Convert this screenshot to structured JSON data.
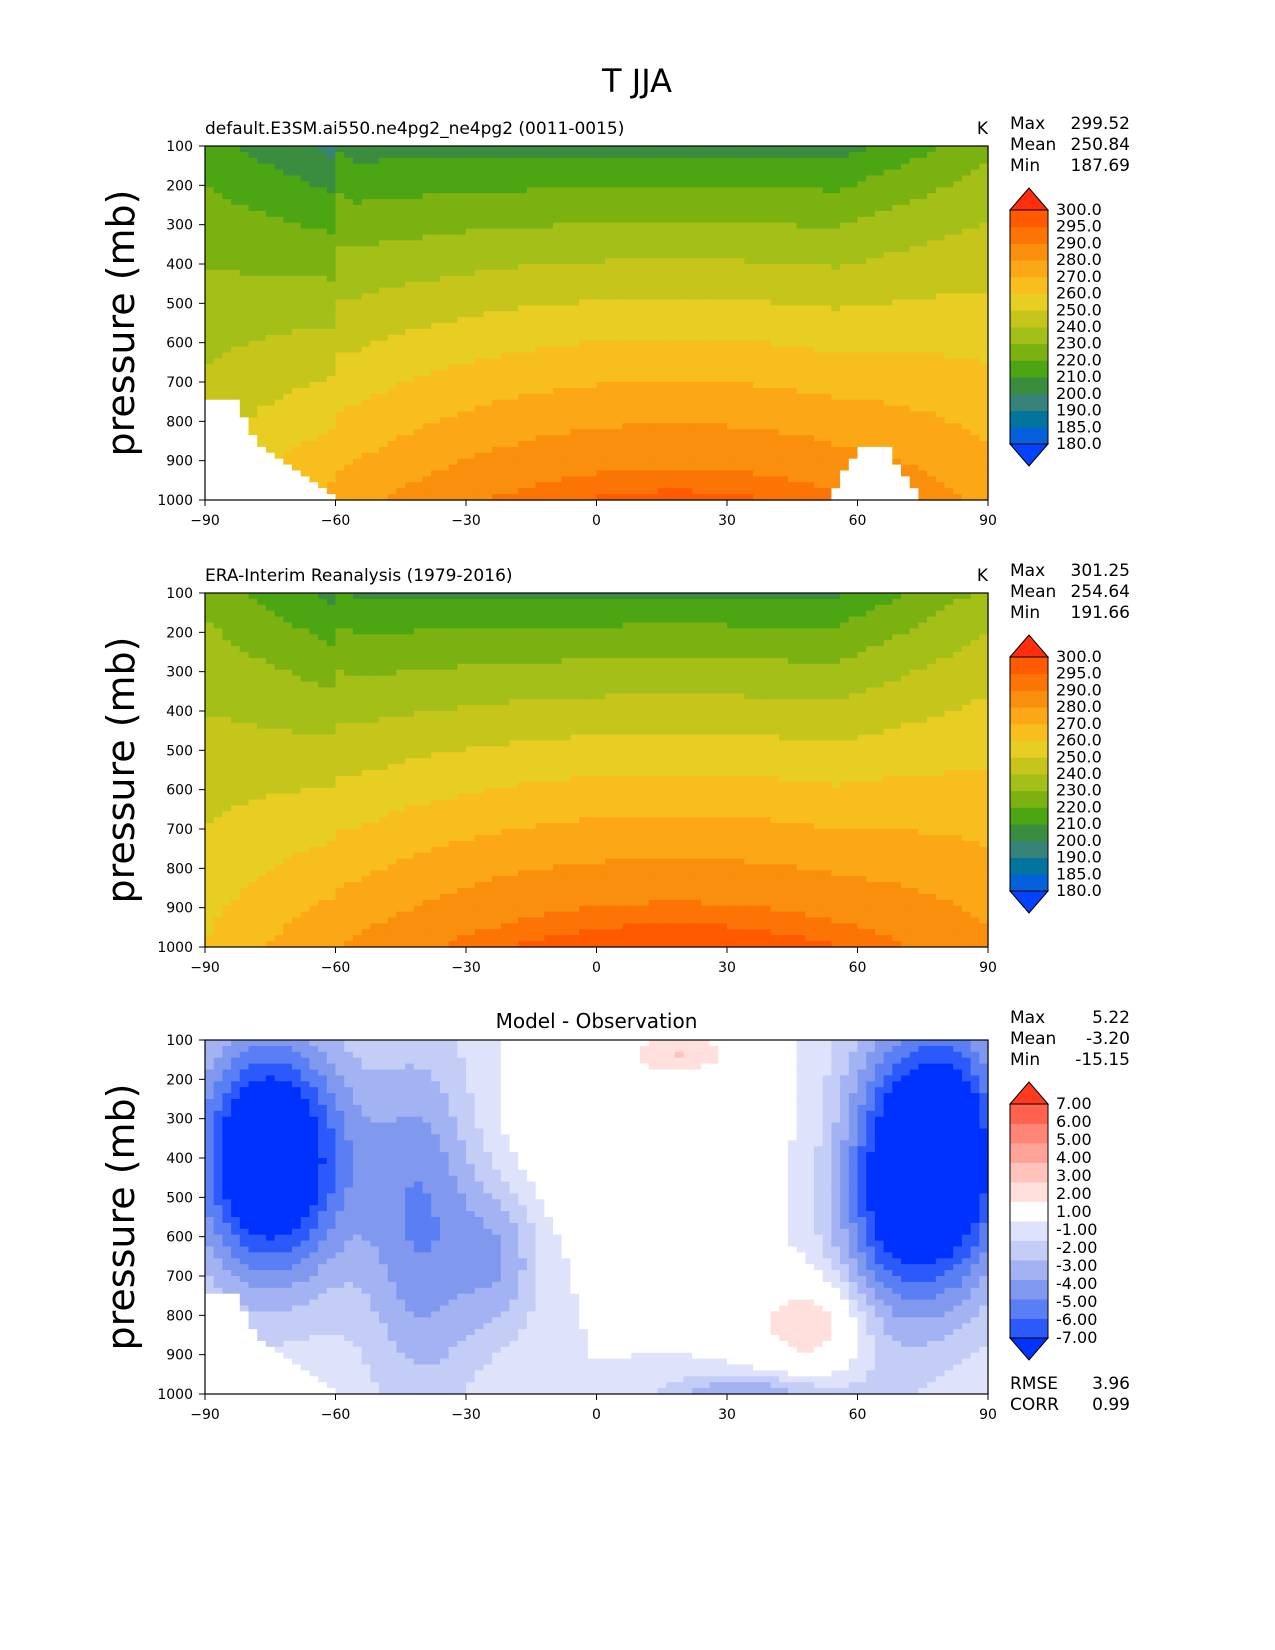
{
  "figure_title": "T JJA",
  "colors": {
    "model_scale": [
      "#0342ff",
      "#0461db",
      "#02749d",
      "#378379",
      "#3a8d3f",
      "#4ca614",
      "#7bb211",
      "#a4bf18",
      "#c6c51c",
      "#e8cd22",
      "#f7be1e",
      "#fca816",
      "#f98f0d",
      "#fb7405",
      "#ff5a00",
      "#ff2e0e"
    ],
    "diff_scale": [
      "#0032ff",
      "#2c5afa",
      "#5a7ef4",
      "#8099ef",
      "#a3b2f2",
      "#c3cdf6",
      "#dee3fb",
      "#ffffff",
      "#ffe0dd",
      "#ffc3bc",
      "#ffa398",
      "#ff8577",
      "#ff624e",
      "#ff3a1f"
    ],
    "masked": "#ffffff"
  },
  "chart_data": [
    {
      "type": "heatmap",
      "title": "default.E3SM.ai550.ne4pg2_ne4pg2 (0011-0015)",
      "units": "K",
      "ylabel": "pressure (mb)",
      "x_ticks": [
        "−90",
        "−60",
        "−30",
        "0",
        "30",
        "60",
        "90"
      ],
      "y_ticks": [
        "100",
        "200",
        "300",
        "400",
        "500",
        "600",
        "700",
        "800",
        "900",
        "1000"
      ],
      "xlim": [
        -90,
        90
      ],
      "ylim": [
        1000,
        100
      ],
      "stats": {
        "Max": "299.52",
        "Mean": "250.84",
        "Min": "187.69"
      },
      "colorbar_labels": [
        "180.0",
        "185.0",
        "190.0",
        "200.0",
        "210.0",
        "220.0",
        "230.0",
        "240.0",
        "250.0",
        "260.0",
        "270.0",
        "280.0",
        "290.0",
        "295.0",
        "300.0"
      ],
      "field": "model"
    },
    {
      "type": "heatmap",
      "title": "ERA-Interim Reanalysis (1979-2016)",
      "units": "K",
      "ylabel": "pressure (mb)",
      "x_ticks": [
        "−90",
        "−60",
        "−30",
        "0",
        "30",
        "60",
        "90"
      ],
      "y_ticks": [
        "100",
        "200",
        "300",
        "400",
        "500",
        "600",
        "700",
        "800",
        "900",
        "1000"
      ],
      "xlim": [
        -90,
        90
      ],
      "ylim": [
        1000,
        100
      ],
      "stats": {
        "Max": "301.25",
        "Mean": "254.64",
        "Min": "191.66"
      },
      "colorbar_labels": [
        "180.0",
        "185.0",
        "190.0",
        "200.0",
        "210.0",
        "220.0",
        "230.0",
        "240.0",
        "250.0",
        "260.0",
        "270.0",
        "280.0",
        "290.0",
        "295.0",
        "300.0"
      ],
      "field": "obs"
    },
    {
      "type": "heatmap",
      "title": "Model - Observation",
      "units": "",
      "ylabel": "pressure (mb)",
      "x_ticks": [
        "−90",
        "−60",
        "−30",
        "0",
        "30",
        "60",
        "90"
      ],
      "y_ticks": [
        "100",
        "200",
        "300",
        "400",
        "500",
        "600",
        "700",
        "800",
        "900",
        "1000"
      ],
      "xlim": [
        -90,
        90
      ],
      "ylim": [
        1000,
        100
      ],
      "stats": {
        "Max": "5.22",
        "Mean": "-3.20",
        "Min": "-15.15"
      },
      "colorbar_labels": [
        "-7.00",
        "-6.00",
        "-5.00",
        "-4.00",
        "-3.00",
        "-2.00",
        "-1.00",
        "1.00",
        "2.00",
        "3.00",
        "4.00",
        "5.00",
        "6.00",
        "7.00"
      ],
      "bottom_stats": {
        "RMSE": "3.96",
        "CORR": "0.99"
      },
      "field": "diff"
    }
  ]
}
